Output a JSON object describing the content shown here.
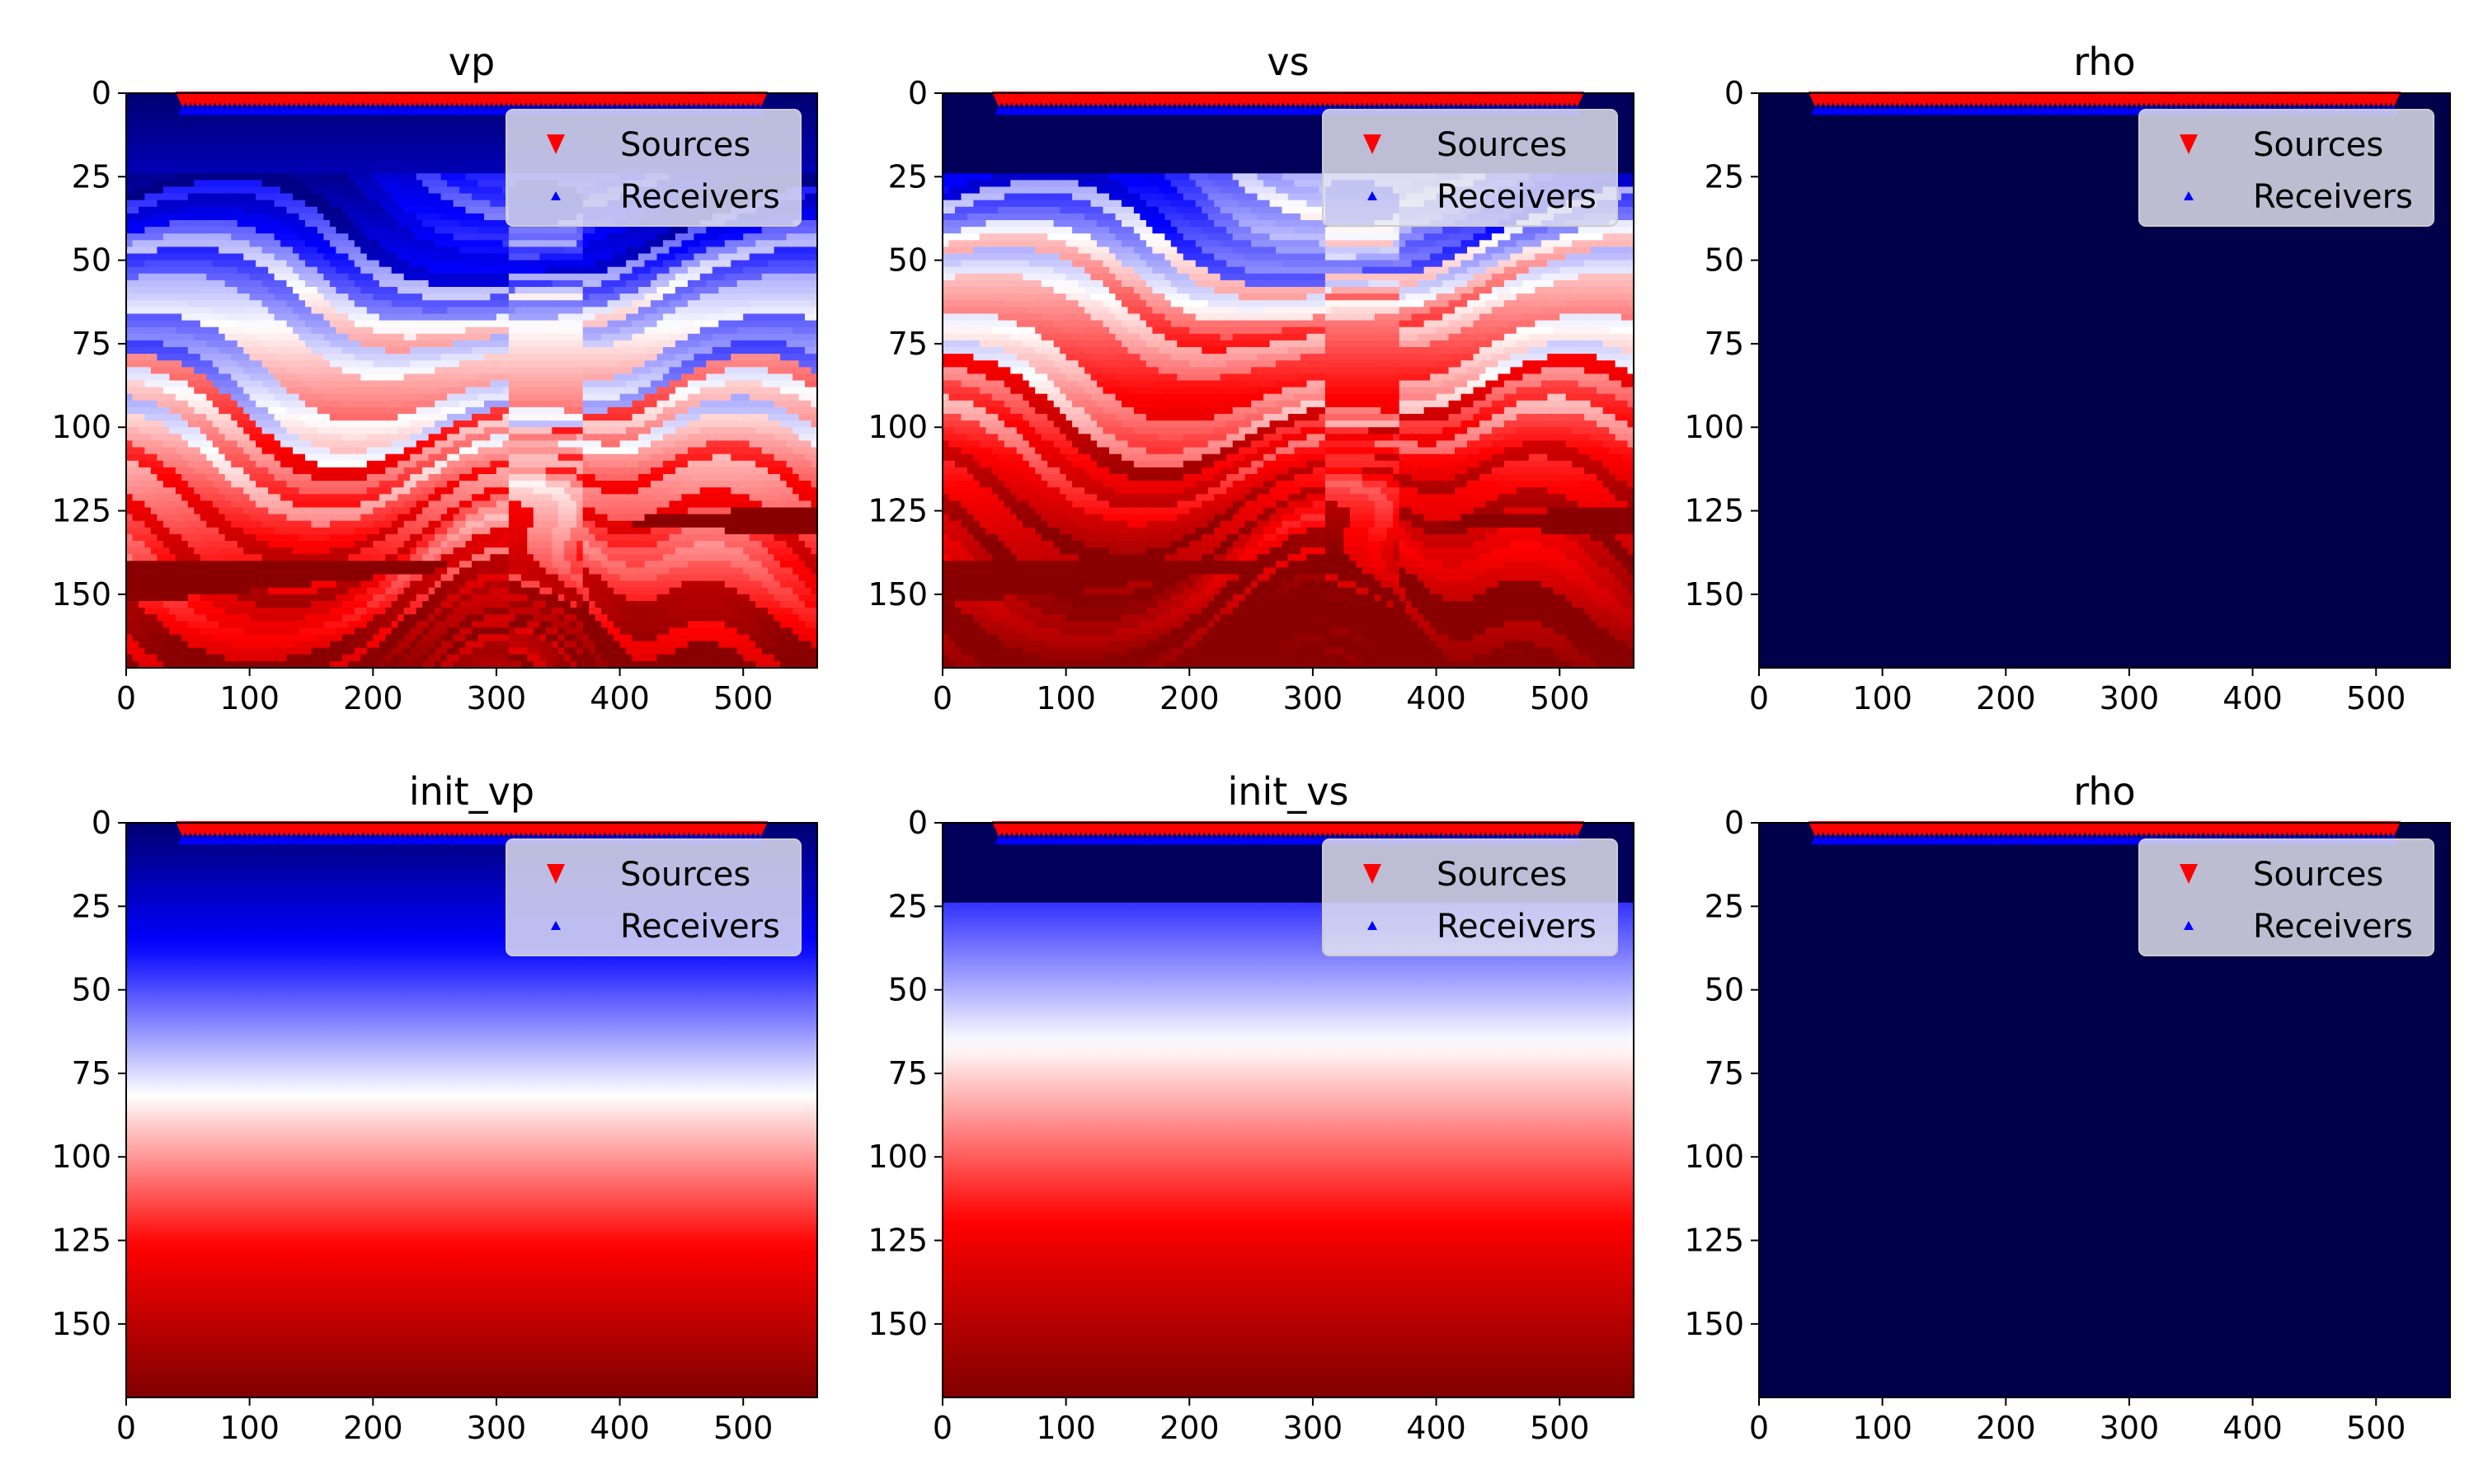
{
  "figure": {
    "type": "subplot-grid",
    "rows": 2,
    "cols": 3
  },
  "colors": {
    "source_marker": "#ff0000",
    "receiver_marker": "#0000ff",
    "background_dark": "#00004a",
    "deep_dark": "#7f0000",
    "legend_bg": "#e6e6f0"
  },
  "chart_data": [
    {
      "type": "heatmap",
      "title": "vp",
      "colormap": "seismic",
      "field": "marmousi_layered",
      "xlim": [
        0,
        560
      ],
      "ylim": [
        172,
        0
      ],
      "xticks": [
        "0",
        "100",
        "200",
        "300",
        "400",
        "500"
      ],
      "yticks": [
        "0",
        "25",
        "50",
        "75",
        "100",
        "125",
        "150"
      ],
      "water_depth": 24,
      "sources": {
        "x_range": [
          46,
          514
        ],
        "depth": 2
      },
      "receivers": {
        "x_range": [
          46,
          514
        ],
        "depth": 5
      },
      "legend": {
        "placement": "top-right",
        "entries": [
          "Sources",
          "Receivers"
        ]
      }
    },
    {
      "type": "heatmap",
      "title": "vs",
      "colormap": "seismic",
      "field": "marmousi_layered_vs",
      "xlim": [
        0,
        560
      ],
      "ylim": [
        172,
        0
      ],
      "xticks": [
        "0",
        "100",
        "200",
        "300",
        "400",
        "500"
      ],
      "yticks": [
        "0",
        "25",
        "50",
        "75",
        "100",
        "125",
        "150"
      ],
      "water_depth": 24,
      "sources": {
        "x_range": [
          46,
          514
        ],
        "depth": 2
      },
      "receivers": {
        "x_range": [
          46,
          514
        ],
        "depth": 5
      },
      "legend": {
        "placement": "top-right",
        "entries": [
          "Sources",
          "Receivers"
        ]
      }
    },
    {
      "type": "heatmap",
      "title": "rho",
      "colormap": "seismic",
      "field": "constant",
      "xlim": [
        0,
        560
      ],
      "ylim": [
        172,
        0
      ],
      "xticks": [
        "0",
        "100",
        "200",
        "300",
        "400",
        "500"
      ],
      "yticks": [
        "0",
        "25",
        "50",
        "75",
        "100",
        "125",
        "150"
      ],
      "sources": {
        "x_range": [
          46,
          514
        ],
        "depth": 2
      },
      "receivers": {
        "x_range": [
          46,
          514
        ],
        "depth": 5
      },
      "legend": {
        "placement": "top-right",
        "entries": [
          "Sources",
          "Receivers"
        ]
      }
    },
    {
      "type": "heatmap",
      "title": "init_vp",
      "colormap": "seismic",
      "field": "linear_gradient",
      "xlim": [
        0,
        560
      ],
      "ylim": [
        172,
        0
      ],
      "xticks": [
        "0",
        "100",
        "200",
        "300",
        "400",
        "500"
      ],
      "yticks": [
        "0",
        "25",
        "50",
        "75",
        "100",
        "125",
        "150"
      ],
      "water_depth": 0,
      "sources": {
        "x_range": [
          46,
          514
        ],
        "depth": 2
      },
      "receivers": {
        "x_range": [
          46,
          514
        ],
        "depth": 5
      },
      "legend": {
        "placement": "top-right",
        "entries": [
          "Sources",
          "Receivers"
        ]
      }
    },
    {
      "type": "heatmap",
      "title": "init_vs",
      "colormap": "seismic",
      "field": "linear_gradient_water",
      "xlim": [
        0,
        560
      ],
      "ylim": [
        172,
        0
      ],
      "xticks": [
        "0",
        "100",
        "200",
        "300",
        "400",
        "500"
      ],
      "yticks": [
        "0",
        "25",
        "50",
        "75",
        "100",
        "125",
        "150"
      ],
      "water_depth": 24,
      "sources": {
        "x_range": [
          46,
          514
        ],
        "depth": 2
      },
      "receivers": {
        "x_range": [
          46,
          514
        ],
        "depth": 5
      },
      "legend": {
        "placement": "top-right",
        "entries": [
          "Sources",
          "Receivers"
        ]
      }
    },
    {
      "type": "heatmap",
      "title": "rho",
      "colormap": "seismic",
      "field": "constant",
      "xlim": [
        0,
        560
      ],
      "ylim": [
        172,
        0
      ],
      "xticks": [
        "0",
        "100",
        "200",
        "300",
        "400",
        "500"
      ],
      "yticks": [
        "0",
        "25",
        "50",
        "75",
        "100",
        "125",
        "150"
      ],
      "sources": {
        "x_range": [
          46,
          514
        ],
        "depth": 2
      },
      "receivers": {
        "x_range": [
          46,
          514
        ],
        "depth": 5
      },
      "legend": {
        "placement": "top-right",
        "entries": [
          "Sources",
          "Receivers"
        ]
      }
    }
  ]
}
